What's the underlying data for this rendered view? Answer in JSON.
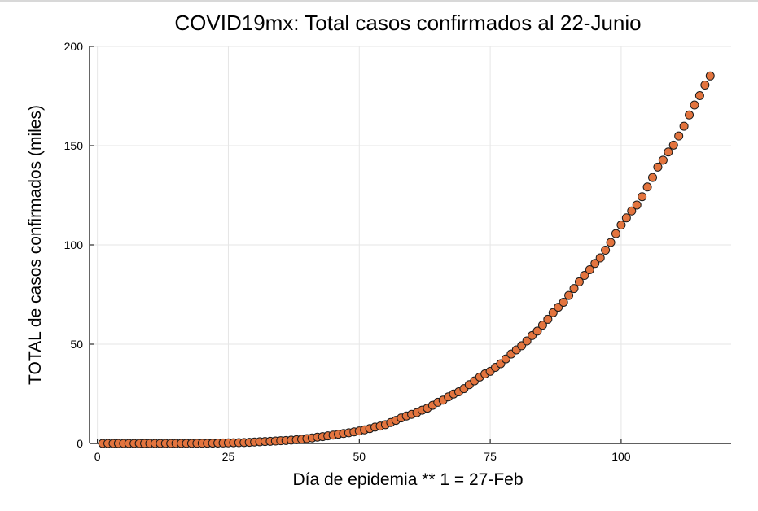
{
  "chart_data": {
    "type": "scatter",
    "title": "COVID19mx: Total casos confirmados al 22-Junio",
    "xlabel": "Día de epidemia ** 1 = 27-Feb",
    "ylabel": "TOTAL de casos confirmados (miles)",
    "xlim": [
      -1.5,
      121
    ],
    "ylim": [
      0,
      200
    ],
    "xticks": [
      0,
      25,
      50,
      75,
      100
    ],
    "yticks": [
      0,
      50,
      100,
      150,
      200
    ],
    "grid": true,
    "legend": "none",
    "marker_color": "#e3743e",
    "marker_edge_color": "#1a1a1a",
    "series": [
      {
        "x": [
          1,
          2,
          3,
          4,
          5,
          6,
          7,
          8,
          9,
          10,
          11,
          12,
          13,
          14,
          15,
          16,
          17,
          18,
          19,
          20,
          21,
          22,
          23,
          24,
          25,
          26,
          27,
          28,
          29,
          30,
          31,
          32,
          33,
          34,
          35,
          36,
          37,
          38,
          39,
          40,
          41,
          42,
          43,
          44,
          45,
          46,
          47,
          48,
          49,
          50,
          51,
          52,
          53,
          54,
          55,
          56,
          57,
          58,
          59,
          60,
          61,
          62,
          63,
          64,
          65,
          66,
          67,
          68,
          69,
          70,
          71,
          72,
          73,
          74,
          75,
          76,
          77,
          78,
          79,
          80,
          81,
          82,
          83,
          84,
          85,
          86,
          87,
          88,
          89,
          90,
          91,
          92,
          93,
          94,
          95,
          96,
          97,
          98,
          99,
          100,
          101,
          102,
          103,
          104,
          105,
          106,
          107,
          108,
          109,
          110,
          111,
          112,
          113,
          114,
          115,
          116,
          117
        ],
        "y": [
          0.001,
          0.002,
          0.003,
          0.004,
          0.005,
          0.005,
          0.006,
          0.007,
          0.007,
          0.008,
          0.011,
          0.012,
          0.015,
          0.018,
          0.024,
          0.026,
          0.041,
          0.053,
          0.082,
          0.093,
          0.118,
          0.164,
          0.203,
          0.251,
          0.316,
          0.367,
          0.405,
          0.475,
          0.585,
          0.717,
          0.848,
          0.993,
          1.094,
          1.215,
          1.378,
          1.51,
          1.688,
          1.89,
          2.143,
          2.439,
          2.785,
          3.181,
          3.441,
          3.844,
          4.219,
          4.661,
          5.014,
          5.399,
          5.847,
          6.297,
          6.875,
          7.497,
          8.261,
          8.772,
          9.501,
          10.544,
          11.633,
          12.872,
          13.842,
          14.677,
          15.529,
          16.752,
          17.799,
          19.224,
          20.739,
          21.817,
          23.471,
          24.905,
          26.025,
          27.634,
          29.616,
          31.522,
          33.46,
          35.022,
          36.327,
          38.324,
          40.186,
          42.595,
          45.032,
          47.144,
          49.219,
          51.633,
          54.346,
          56.594,
          59.567,
          62.527,
          65.856,
          68.62,
          71.105,
          74.56,
          78.023,
          81.4,
          84.627,
          87.512,
          90.664,
          93.435,
          97.326,
          101.238,
          105.68,
          110.026,
          113.619,
          117.103,
          120.102,
          124.301,
          129.184,
          133.974,
          139.196,
          142.69,
          146.837,
          150.264,
          154.863,
          159.793,
          165.455,
          170.485,
          175.202,
          180.545,
          185.122
        ]
      }
    ]
  }
}
